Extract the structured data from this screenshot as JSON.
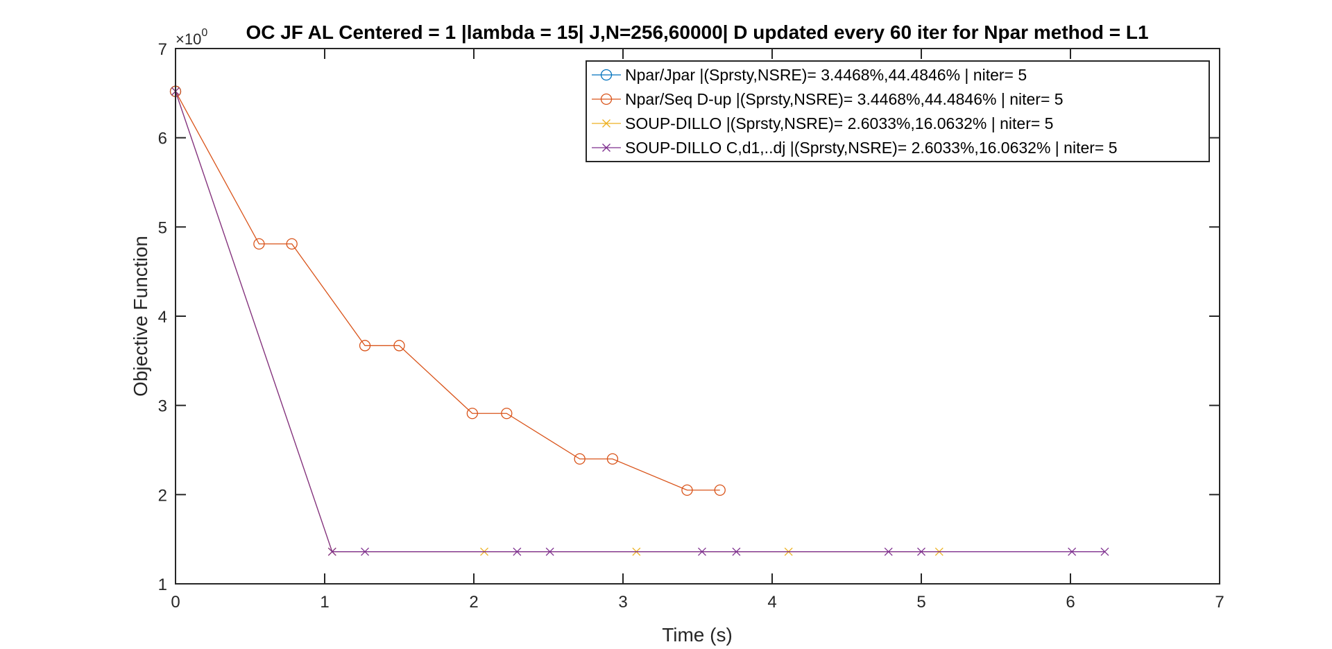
{
  "chart_data": {
    "type": "line",
    "title": "OC JF AL Centered = 1 |lambda = 15| J,N=256,60000| D updated every 60 iter for Npar method = L1",
    "xlabel": "Time (s)",
    "ylabel": "Objective Function",
    "y_exponent_label": "×10",
    "y_exponent_power": "0",
    "xlim": [
      0,
      7
    ],
    "ylim": [
      1,
      7
    ],
    "x_ticks": [
      "0",
      "1",
      "2",
      "3",
      "4",
      "5",
      "6",
      "7"
    ],
    "y_ticks": [
      "1",
      "2",
      "3",
      "4",
      "5",
      "6",
      "7"
    ],
    "grid": false,
    "legend_position": "top-right",
    "series": [
      {
        "name": "Npar/Jpar |(Sprsty,NSRE)= 3.4468%,44.4846% | niter= 5",
        "color": "#0072BD",
        "marker": "o",
        "x": [
          0
        ],
        "y": [
          6.52
        ]
      },
      {
        "name": "Npar/Seq D-up |(Sprsty,NSRE)= 3.4468%,44.4846% | niter= 5",
        "color": "#D95319",
        "marker": "o",
        "x": [
          0,
          0.56,
          0.78,
          1.27,
          1.5,
          1.99,
          2.22,
          2.71,
          2.93,
          3.43,
          3.65
        ],
        "y": [
          6.52,
          4.81,
          4.81,
          3.67,
          3.67,
          2.91,
          2.91,
          2.4,
          2.4,
          2.05,
          2.05
        ]
      },
      {
        "name": "SOUP-DILLO |(Sprsty,NSRE)= 2.6033%,16.0632% | niter= 5",
        "color": "#EDB120",
        "marker": "x",
        "x": [
          0,
          1.05,
          2.07,
          3.09,
          4.11,
          5.12
        ],
        "y": [
          6.52,
          1.36,
          1.36,
          1.36,
          1.36,
          1.36
        ]
      },
      {
        "name": "SOUP-DILLO C,d1,..dj |(Sprsty,NSRE)= 2.6033%,16.0632% | niter= 5",
        "color": "#7E2F8E",
        "marker": "x",
        "x": [
          0,
          1.05,
          1.27,
          2.29,
          2.51,
          3.53,
          3.76,
          4.78,
          5.0,
          6.01,
          6.23
        ],
        "y": [
          6.52,
          1.36,
          1.36,
          1.36,
          1.36,
          1.36,
          1.36,
          1.36,
          1.36,
          1.36,
          1.36
        ]
      }
    ]
  }
}
